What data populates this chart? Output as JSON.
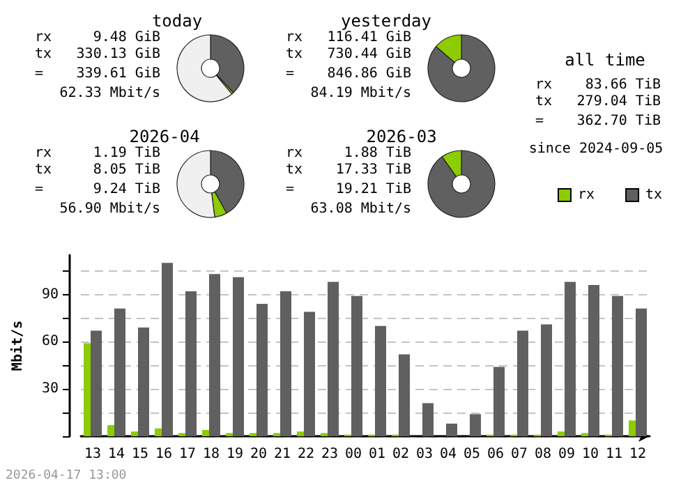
{
  "chart_data": [
    {
      "type": "donut",
      "title": "today",
      "categories": [
        null,
        null,
        null
      ],
      "values": [
        38,
        1,
        61
      ],
      "colors": [
        "#606060",
        "#8ccc00",
        "#f0f0f0"
      ],
      "annotations": [
        "rx",
        "9.48 GiB",
        "tx",
        "330.13 GiB",
        "=",
        "339.61 GiB",
        "62.33 Mbit/s"
      ]
    },
    {
      "type": "donut",
      "title": "yesterday",
      "categories": [
        null,
        null
      ],
      "values": [
        86.3,
        13.7
      ],
      "colors": [
        "#606060",
        "#8ccc00"
      ],
      "annotations": [
        "rx",
        "116.41 GiB",
        "tx",
        "730.44 GiB",
        "=",
        "846.86 GiB",
        "84.19 Mbit/s"
      ]
    },
    {
      "type": "other",
      "title": "all time",
      "annotations": [
        "rx",
        "83.66 TiB",
        "tx",
        "279.04 TiB",
        "=",
        "362.70 TiB",
        "since 2024-09-05"
      ]
    },
    {
      "type": "donut",
      "title": "2026-04",
      "categories": [
        null,
        null,
        null
      ],
      "values": [
        42,
        6,
        52
      ],
      "colors": [
        "#606060",
        "#8ccc00",
        "#f0f0f0"
      ],
      "annotations": [
        "rx",
        "1.19 TiB",
        "tx",
        "8.05 TiB",
        "=",
        "9.24 TiB",
        "56.90 Mbit/s"
      ]
    },
    {
      "type": "donut",
      "title": "2026-03",
      "categories": [
        null,
        null
      ],
      "values": [
        90.2,
        9.8
      ],
      "colors": [
        "#606060",
        "#8ccc00"
      ],
      "annotations": [
        "rx",
        "1.88 TiB",
        "tx",
        "17.33 TiB",
        "=",
        "19.21 TiB",
        "63.08 Mbit/s"
      ]
    },
    {
      "type": "bar",
      "ylabel": "Mbit/s",
      "categories": [
        "13",
        "14",
        "15",
        "16",
        "17",
        "18",
        "19",
        "20",
        "21",
        "22",
        "23",
        "00",
        "01",
        "02",
        "03",
        "04",
        "05",
        "06",
        "07",
        "08",
        "09",
        "10",
        "11",
        "12"
      ],
      "series": [
        {
          "name": "rx",
          "color": "#8ccc00",
          "values": [
            59,
            7,
            3,
            5,
            2,
            4,
            2,
            2,
            2,
            3,
            2,
            1,
            1,
            1,
            0,
            0,
            0,
            1,
            1,
            1,
            3,
            2,
            1,
            10
          ]
        },
        {
          "name": "tx",
          "color": "#606060",
          "values": [
            67,
            81,
            69,
            110,
            92,
            103,
            101,
            84,
            92,
            79,
            98,
            89,
            70,
            52,
            21,
            8,
            14,
            44,
            67,
            71,
            98,
            96,
            89,
            81
          ]
        }
      ],
      "ylim": [
        0,
        115
      ],
      "yticks": [
        {
          "value": 0,
          "label": null
        },
        {
          "value": 15,
          "label": null
        },
        30,
        {
          "value": 45,
          "label": null
        },
        60,
        {
          "value": 75,
          "label": null
        },
        90,
        {
          "value": 105,
          "label": null
        }
      ],
      "grid": "y",
      "legend": "top right",
      "annotations": [
        "2026-04-17 13:00"
      ]
    }
  ]
}
